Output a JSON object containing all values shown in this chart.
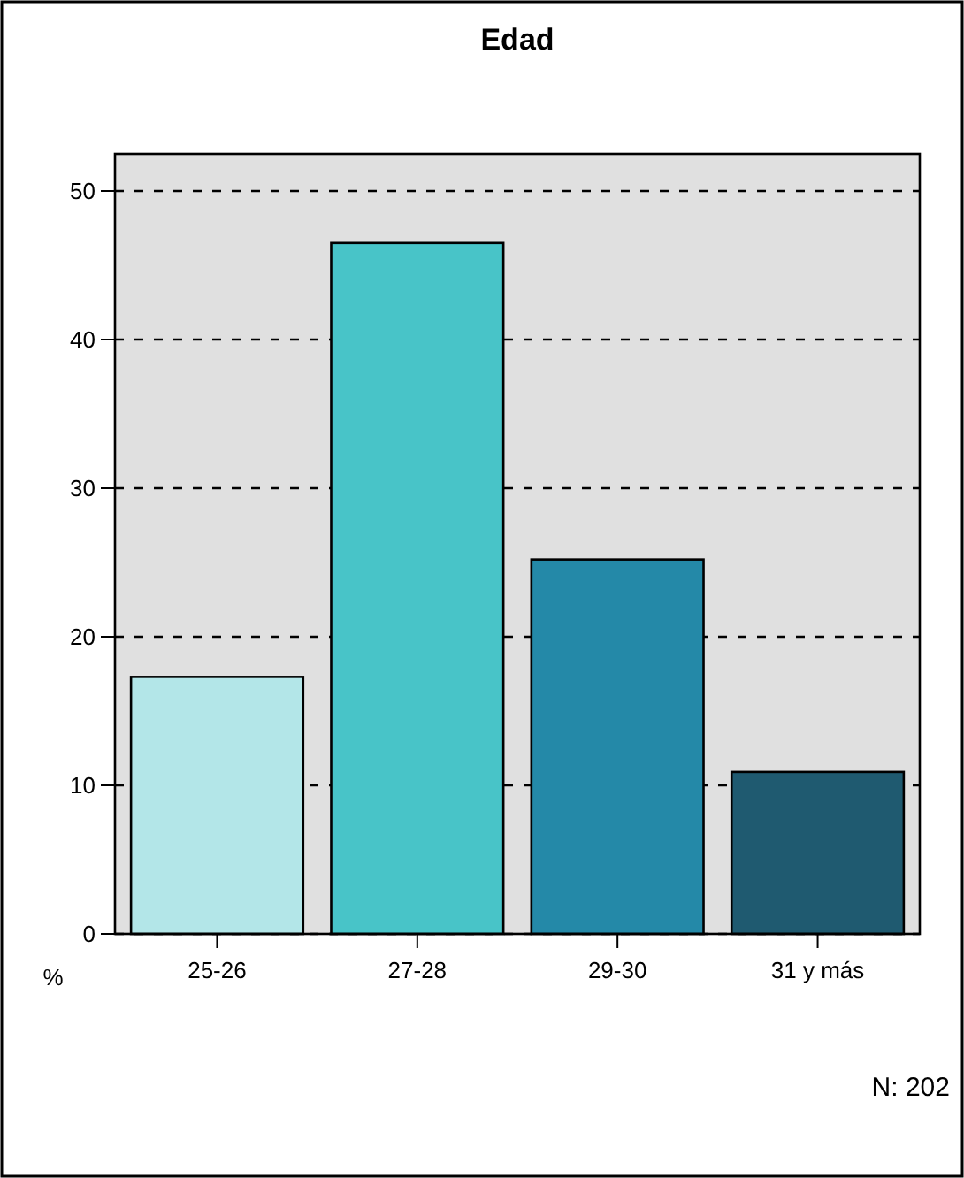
{
  "chart_data": {
    "type": "bar",
    "title": "Edad",
    "ylabel": "%",
    "categories": [
      "25-26",
      "27-28",
      "29-30",
      "31 y más"
    ],
    "values": [
      17.3,
      46.5,
      25.2,
      10.9
    ],
    "colors": [
      "#b3e6e8",
      "#48c4c8",
      "#2489a8",
      "#1f5a70"
    ],
    "ylim": [
      0,
      52.5
    ],
    "yticks": [
      0,
      10,
      20,
      30,
      40,
      50
    ],
    "grid": "y",
    "annotations": [
      "N: 202"
    ]
  }
}
